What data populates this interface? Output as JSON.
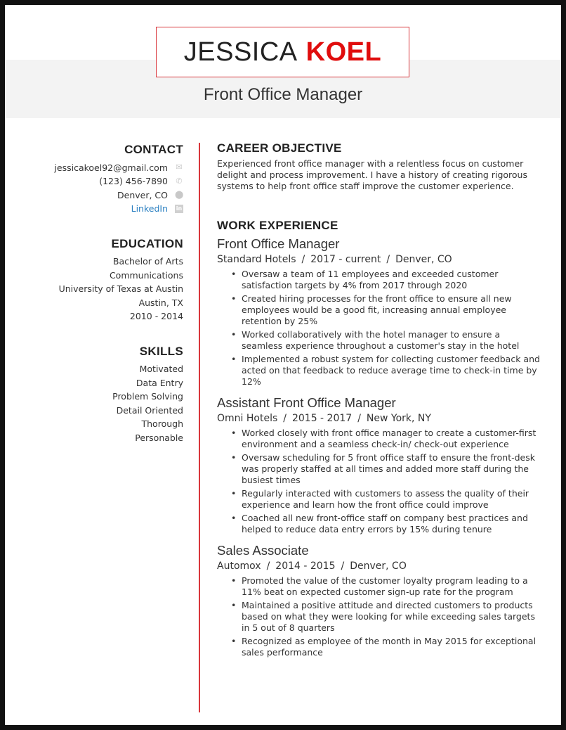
{
  "header": {
    "first_name": "JESSICA",
    "last_name": "KOEL",
    "title": "Front Office Manager"
  },
  "contact": {
    "heading": "CONTACT",
    "email": "jessicakoel92@gmail.com",
    "phone": "(123) 456-7890",
    "location": "Denver, CO",
    "linkedin": "LinkedIn"
  },
  "education": {
    "heading": "EDUCATION",
    "lines": [
      "Bachelor of Arts",
      "Communications",
      "University of Texas at Austin",
      "Austin, TX",
      "2010 - 2014"
    ]
  },
  "skills": {
    "heading": "SKILLS",
    "items": [
      "Motivated",
      "Data Entry",
      "Problem Solving",
      "Detail Oriented",
      "Thorough",
      "Personable"
    ]
  },
  "objective": {
    "heading": "CAREER OBJECTIVE",
    "text": "Experienced front office manager with a relentless focus on customer delight and process improvement. I have a history of creating rigorous systems to help front office staff improve the customer experience."
  },
  "experience": {
    "heading": "WORK EXPERIENCE",
    "jobs": [
      {
        "title": "Front Office Manager",
        "company": "Standard Hotels",
        "dates": "2017 - current",
        "location": "Denver, CO",
        "bullets": [
          "Oversaw a team of 11 employees and exceeded customer satisfaction targets by 4% from 2017 through 2020",
          "Created hiring processes for the front office to ensure all new employees would be a good fit, increasing annual employee retention by 25%",
          "Worked collaboratively with the hotel manager to ensure a seamless experience throughout a customer's stay in the hotel",
          "Implemented a robust system for collecting customer feedback and acted on that feedback to reduce average time to check-in time by 12%"
        ]
      },
      {
        "title": "Assistant Front Office Manager",
        "company": "Omni Hotels",
        "dates": "2015 - 2017",
        "location": "New York, NY",
        "bullets": [
          "Worked closely with front office manager to create a customer-first environment and a seamless check-in/ check-out experience",
          "Oversaw scheduling for 5 front office staff to ensure the front-desk was properly staffed at all times and added more staff during the busiest times",
          "Regularly interacted with customers to assess the quality of their experience and learn how the front office could improve",
          "Coached all new front-office staff on company best practices and helped to reduce data entry errors by 15% during tenure"
        ]
      },
      {
        "title": "Sales Associate",
        "company": "Automox",
        "dates": "2014 - 2015",
        "location": "Denver, CO",
        "bullets": [
          "Promoted the value of the customer loyalty program leading to a 11% beat on expected customer sign-up rate for the program",
          "Maintained a positive attitude and directed customers to products based on what they were looking for while exceeding sales targets in 5 out of 8 quarters",
          "Recognized as employee of the month in May 2015 for exceptional sales performance"
        ]
      }
    ]
  },
  "colors": {
    "accent": "#e00d0d",
    "link": "#2a7fc1",
    "band": "#f3f3f3"
  }
}
